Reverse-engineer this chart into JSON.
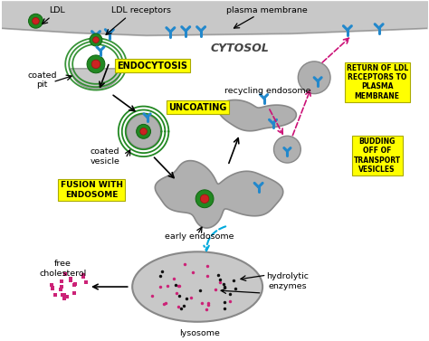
{
  "bg_color": "#ffffff",
  "membrane_color": "#c8c8c8",
  "label_bg": "#ffff00",
  "receptor_color": "#2288cc",
  "ldl_outer": "#228822",
  "ldl_inner": "#cc2222",
  "endosome_color": "#b0b0b0",
  "labels": {
    "ldl": "LDL",
    "ldl_receptors": "LDL receptors",
    "plasma_membrane": "plasma membrane",
    "cytosol": "CYTOSOL",
    "endocytosis": "ENDOCYTOSIS",
    "uncoating": "UNCOATING",
    "coated_pit": "coated\npit",
    "coated_vesicle": "coated\nvesicle",
    "fusion_endosome": "FUSION WITH\nENDOSOME",
    "recycling_endosome": "recycling endosome",
    "early_endosome": "early endosome",
    "return_ldl": "RETURN OF LDL\nRECEPTORS TO\nPLASMA\nMEMBRANE",
    "budding": "BUDDING\nOFF OF\nTRANSPORT\nVESICLES",
    "free_cholesterol": "free\ncholesterol",
    "hydrolytic_enzymes": "hydrolytic\nenzymes",
    "lysosome": "lysosome"
  }
}
